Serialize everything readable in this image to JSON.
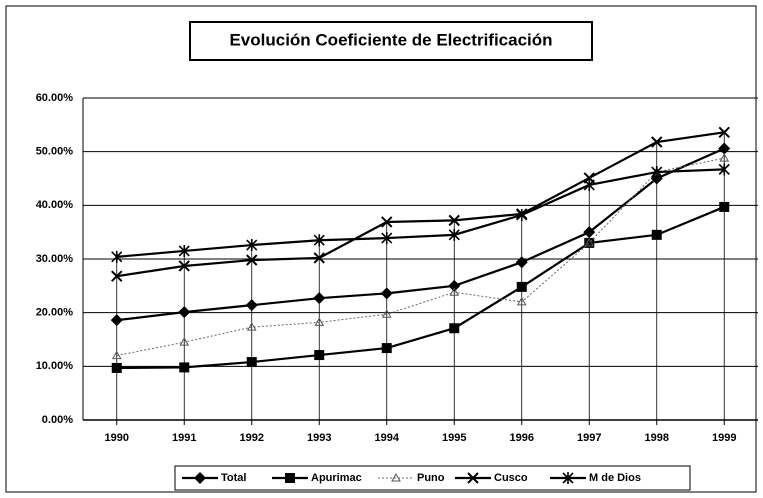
{
  "chart_data": {
    "type": "line",
    "title": "Evolución Coeficiente de Electrificación",
    "categories": [
      "1990",
      "1991",
      "1992",
      "1993",
      "1994",
      "1995",
      "1996",
      "1997",
      "1998",
      "1999"
    ],
    "series": [
      {
        "name": "Total",
        "color": "#000000",
        "marker": "diamond",
        "dash": false,
        "values": [
          18.6,
          20.1,
          21.4,
          22.7,
          23.6,
          25,
          29.4,
          35,
          45,
          50.6
        ]
      },
      {
        "name": "Apurimac",
        "color": "#000000",
        "marker": "square",
        "dash": false,
        "values": [
          9.7,
          9.8,
          10.8,
          12.1,
          13.4,
          17.1,
          24.8,
          33,
          34.5,
          39.7
        ]
      },
      {
        "name": "Puno",
        "color": "#000000",
        "marker": "triangle",
        "dash": true,
        "values": [
          12,
          14.5,
          17.3,
          18.2,
          19.7,
          23.8,
          22,
          33,
          46.2,
          48.8
        ]
      },
      {
        "name": "Cusco",
        "color": "#000000",
        "marker": "x",
        "dash": false,
        "values": [
          26.8,
          28.7,
          29.8,
          30.2,
          36.9,
          37.2,
          38.4,
          45.1,
          51.8,
          53.6
        ]
      },
      {
        "name": "M de Dios",
        "color": "#000000",
        "marker": "star",
        "dash": false,
        "values": [
          30.4,
          31.5,
          32.6,
          33.5,
          33.9,
          34.5,
          38.2,
          43.8,
          46.2,
          46.7
        ]
      }
    ],
    "ylim": [
      0,
      60
    ],
    "yticks": [
      {
        "value": 0,
        "label": "0.00%"
      },
      {
        "value": 10,
        "label": "10.00%"
      },
      {
        "value": 20,
        "label": "20.00%"
      },
      {
        "value": 30,
        "label": "30.00%"
      },
      {
        "value": 40,
        "label": "40.00%"
      },
      {
        "value": 50,
        "label": "50.00%"
      },
      {
        "value": 60,
        "label": "60.00%"
      }
    ],
    "grid": true
  }
}
